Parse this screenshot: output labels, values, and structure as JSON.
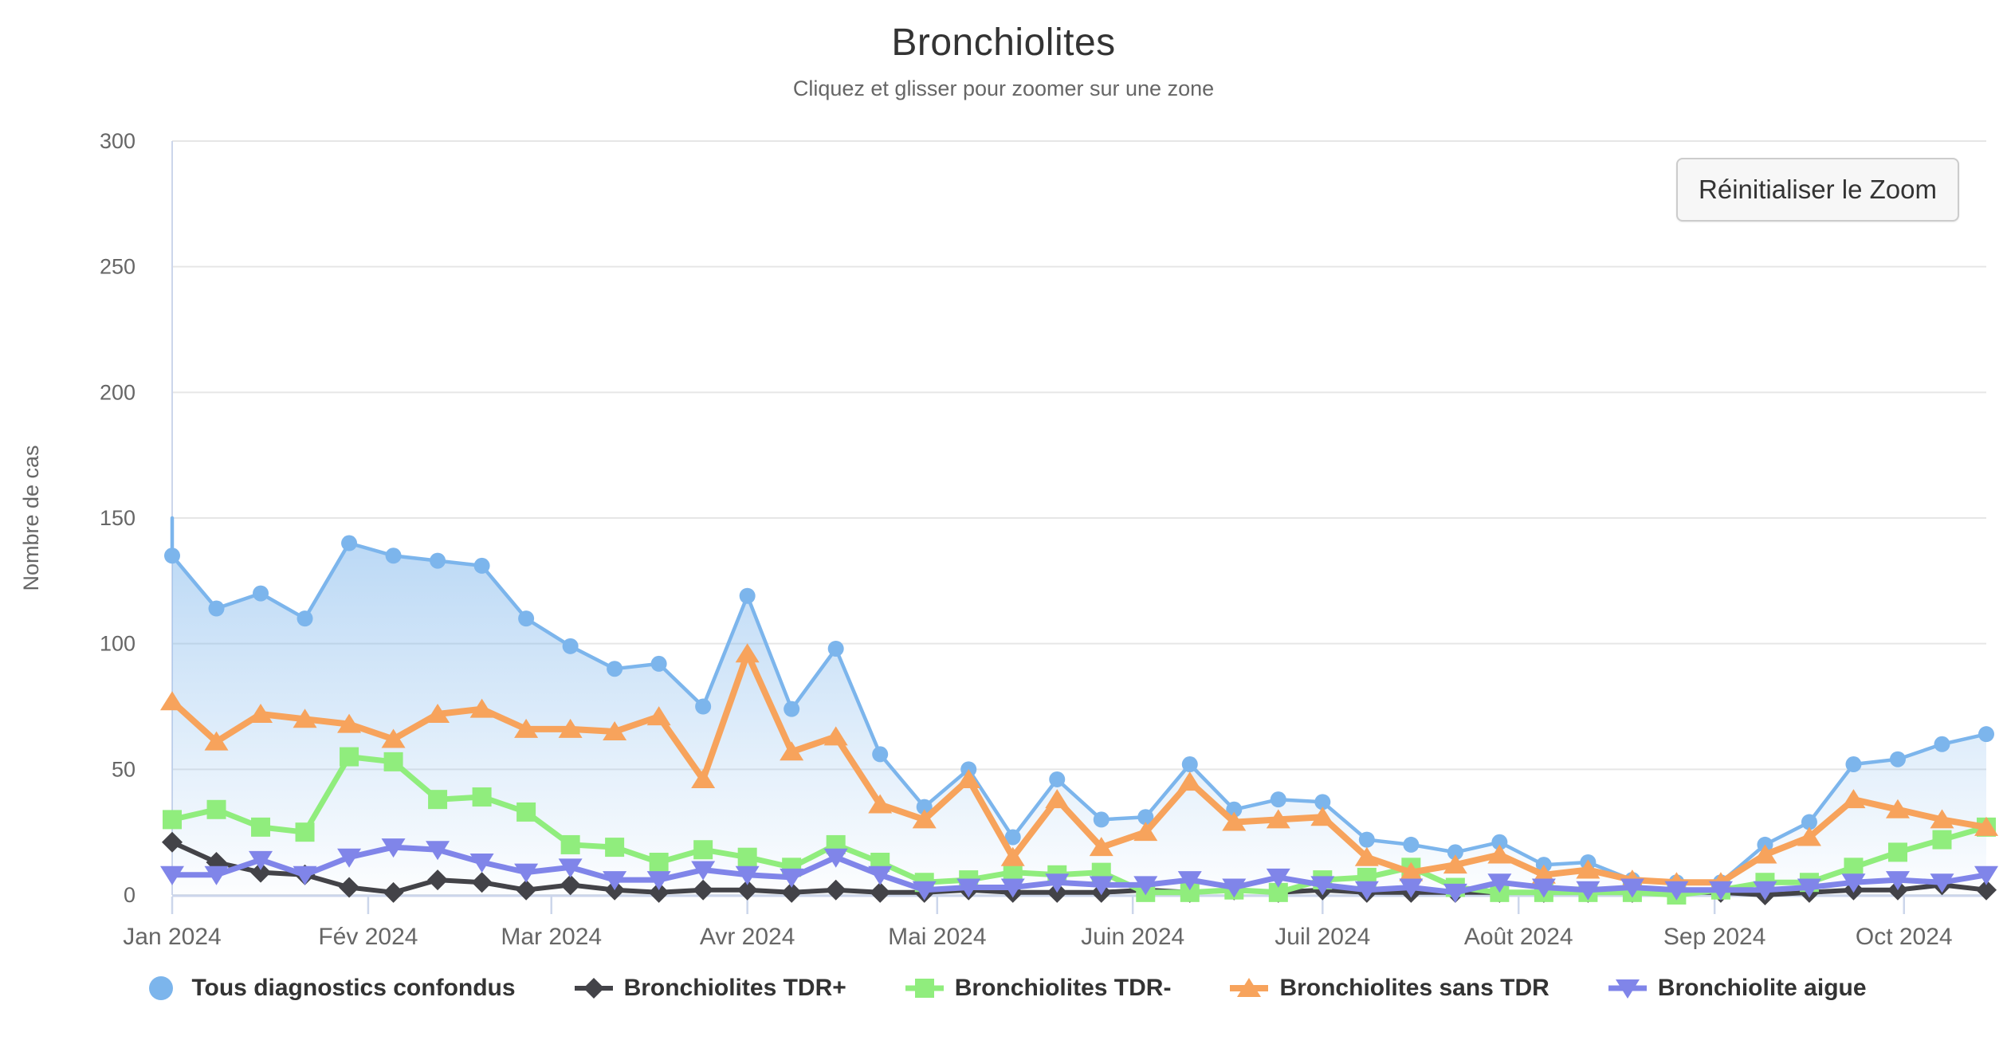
{
  "title": "Bronchiolites",
  "subtitle": "Cliquez et glisser pour zoomer sur une zone",
  "reset_zoom_label": "Réinitialiser le Zoom",
  "y_axis": {
    "title": "Nombre de cas",
    "tick_values": [
      0,
      50,
      100,
      150,
      200,
      250,
      300
    ],
    "max": 300
  },
  "x_axis": {
    "ticks": [
      {
        "label": "Jan 2024",
        "week": 0
      },
      {
        "label": "Fév 2024",
        "week": 4.43
      },
      {
        "label": "Mar 2024",
        "week": 8.57
      },
      {
        "label": "Avr 2024",
        "week": 13
      },
      {
        "label": "Mai 2024",
        "week": 17.29
      },
      {
        "label": "Juin 2024",
        "week": 21.71
      },
      {
        "label": "Juil 2024",
        "week": 26
      },
      {
        "label": "Août 2024",
        "week": 30.43
      },
      {
        "label": "Sep 2024",
        "week": 34.86
      },
      {
        "label": "Oct 2024",
        "week": 39.14
      }
    ]
  },
  "colors": {
    "background": "#ffffff",
    "grid": "#e6e6e6",
    "axis_line": "#ccd6eb",
    "text_primary": "#333333",
    "text_secondary": "#666666",
    "button_bg": "#f7f7f7",
    "button_border": "#cccccc"
  },
  "chart_data": {
    "type": "line",
    "title": "Bronchiolites",
    "subtitle": "Cliquez et glisser pour zoomer sur une zone",
    "xlabel": "",
    "ylabel": "Nombre de cas",
    "ylim": [
      0,
      300
    ],
    "grid": "horizontal",
    "legend_position": "bottom",
    "n_points": 42,
    "x_description": "Données hebdomadaires, Jan 2024 à Oct 2024",
    "series": [
      {
        "name": "Tous diagnostics confondus",
        "color": "#7cb5ec",
        "marker": "circle",
        "area": true,
        "edge_start": 150,
        "values": [
          135,
          114,
          120,
          110,
          140,
          135,
          133,
          131,
          110,
          99,
          90,
          92,
          75,
          119,
          74,
          98,
          56,
          35,
          50,
          23,
          46,
          30,
          31,
          52,
          34,
          38,
          37,
          22,
          20,
          17,
          21,
          12,
          13,
          6,
          5,
          5,
          20,
          29,
          52,
          54,
          60,
          64
        ]
      },
      {
        "name": "Bronchiolites TDR+",
        "color": "#434348",
        "marker": "diamond",
        "area": false,
        "values": [
          21,
          13,
          9,
          8,
          3,
          1,
          6,
          5,
          2,
          4,
          2,
          1,
          2,
          2,
          1,
          2,
          1,
          1,
          2,
          1,
          1,
          1,
          2,
          1,
          2,
          1,
          2,
          1,
          1,
          1,
          1,
          1,
          1,
          1,
          1,
          1,
          0,
          1,
          2,
          2,
          4,
          2
        ]
      },
      {
        "name": "Bronchiolites TDR-",
        "color": "#90ed7d",
        "marker": "square",
        "area": false,
        "values": [
          30,
          34,
          27,
          25,
          55,
          53,
          38,
          39,
          33,
          20,
          19,
          13,
          18,
          15,
          11,
          20,
          13,
          5,
          6,
          9,
          8,
          9,
          1,
          1,
          2,
          1,
          6,
          7,
          11,
          3,
          1,
          1,
          1,
          1,
          0,
          2,
          5,
          5,
          11,
          17,
          22,
          27
        ]
      },
      {
        "name": "Bronchiolites sans TDR",
        "color": "#f7a35c",
        "marker": "triangle",
        "area": false,
        "values": [
          77,
          61,
          72,
          70,
          68,
          62,
          72,
          74,
          66,
          66,
          65,
          71,
          46,
          96,
          57,
          63,
          36,
          30,
          46,
          15,
          38,
          19,
          25,
          45,
          29,
          30,
          31,
          15,
          9,
          12,
          16,
          8,
          10,
          6,
          5,
          5,
          16,
          23,
          38,
          34,
          30,
          27
        ]
      },
      {
        "name": "Bronchiolite aigue",
        "color": "#8085e9",
        "marker": "triangle-down",
        "area": false,
        "values": [
          8,
          8,
          14,
          8,
          15,
          19,
          18,
          13,
          9,
          11,
          6,
          6,
          10,
          8,
          7,
          15,
          8,
          2,
          3,
          3,
          5,
          4,
          4,
          6,
          3,
          7,
          4,
          2,
          3,
          1,
          5,
          3,
          2,
          3,
          2,
          2,
          2,
          3,
          5,
          6,
          5,
          8
        ]
      }
    ]
  }
}
